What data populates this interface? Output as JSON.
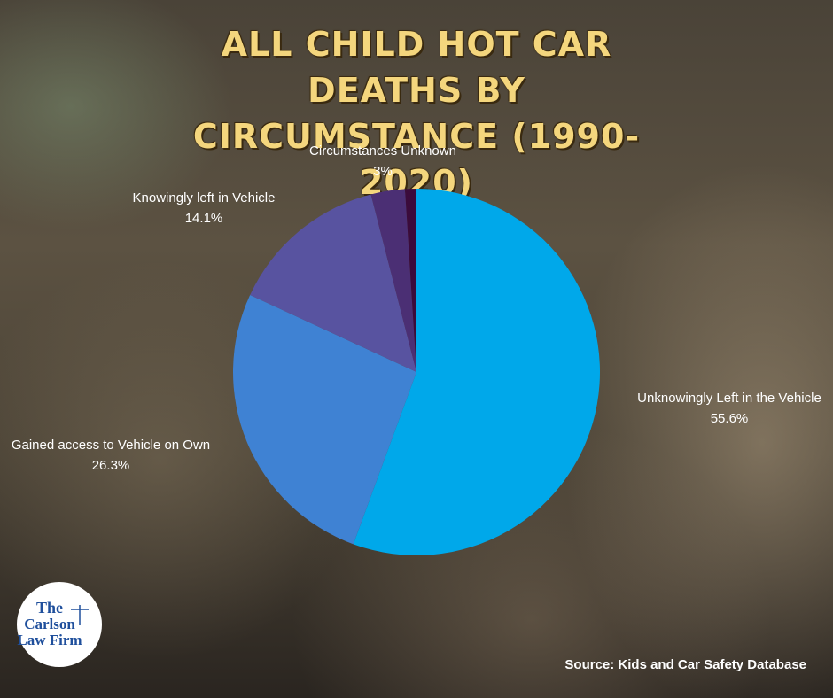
{
  "chart_data": {
    "type": "pie",
    "title": "ALL CHILD HOT CAR DEATHS BY CIRCUMSTANCE (1990-2020)",
    "categories": [
      "Unknowingly Left in the Vehicle",
      "Gained access to Vehicle on Own",
      "Knowingly left in Vehicle",
      "Circumstances Unknown",
      null
    ],
    "values": [
      55.6,
      26.3,
      14.1,
      3,
      1
    ],
    "value_labels": [
      "55.6%",
      "26.3%",
      "14.1%",
      "3%",
      null
    ],
    "colors": [
      "#00a8ea",
      "#3f82d3",
      "#5853a0",
      "#4b2f74",
      "#3b0b3b"
    ],
    "source": "Source: Kids and Car Safety Database"
  },
  "logo": {
    "lines": [
      "The",
      "Carlson",
      "Law Firm"
    ]
  }
}
